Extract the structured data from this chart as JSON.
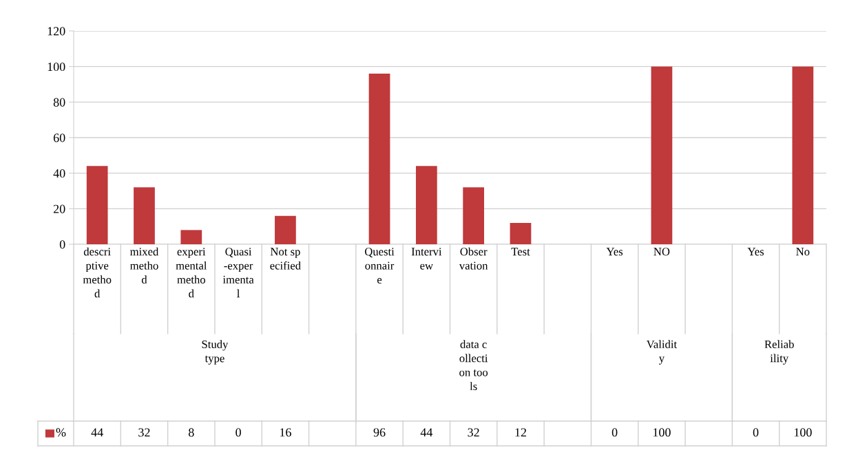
{
  "chart_data": {
    "type": "bar",
    "categories": [
      "descri\nptive\nmetho\nd",
      "mixed\nmetho\nd",
      "experi\nmental\nmetho\nd",
      "Quasi\n-exper\nimenta\nl",
      "Not sp\necified",
      null,
      "Questi\nonnair\ne",
      "Intervi\new",
      "Obser\nvation",
      "Test",
      null,
      "Yes",
      "NO",
      null,
      "Yes",
      "No"
    ],
    "series": [
      {
        "name": "%",
        "color": "#c0393b",
        "values": [
          44,
          32,
          8,
          0,
          16,
          null,
          96,
          44,
          32,
          12,
          null,
          0,
          100,
          null,
          0,
          100
        ]
      }
    ],
    "annotations": [
      "Study\ntype",
      "data c\nollecti\non too\nls",
      "Validit\ny",
      "Reliab\nility"
    ],
    "ylim": [
      0,
      120
    ],
    "yticks": [
      0,
      20,
      40,
      60,
      80,
      100,
      120
    ],
    "grid": "y",
    "legend": "bottom",
    "data_labels": true
  }
}
